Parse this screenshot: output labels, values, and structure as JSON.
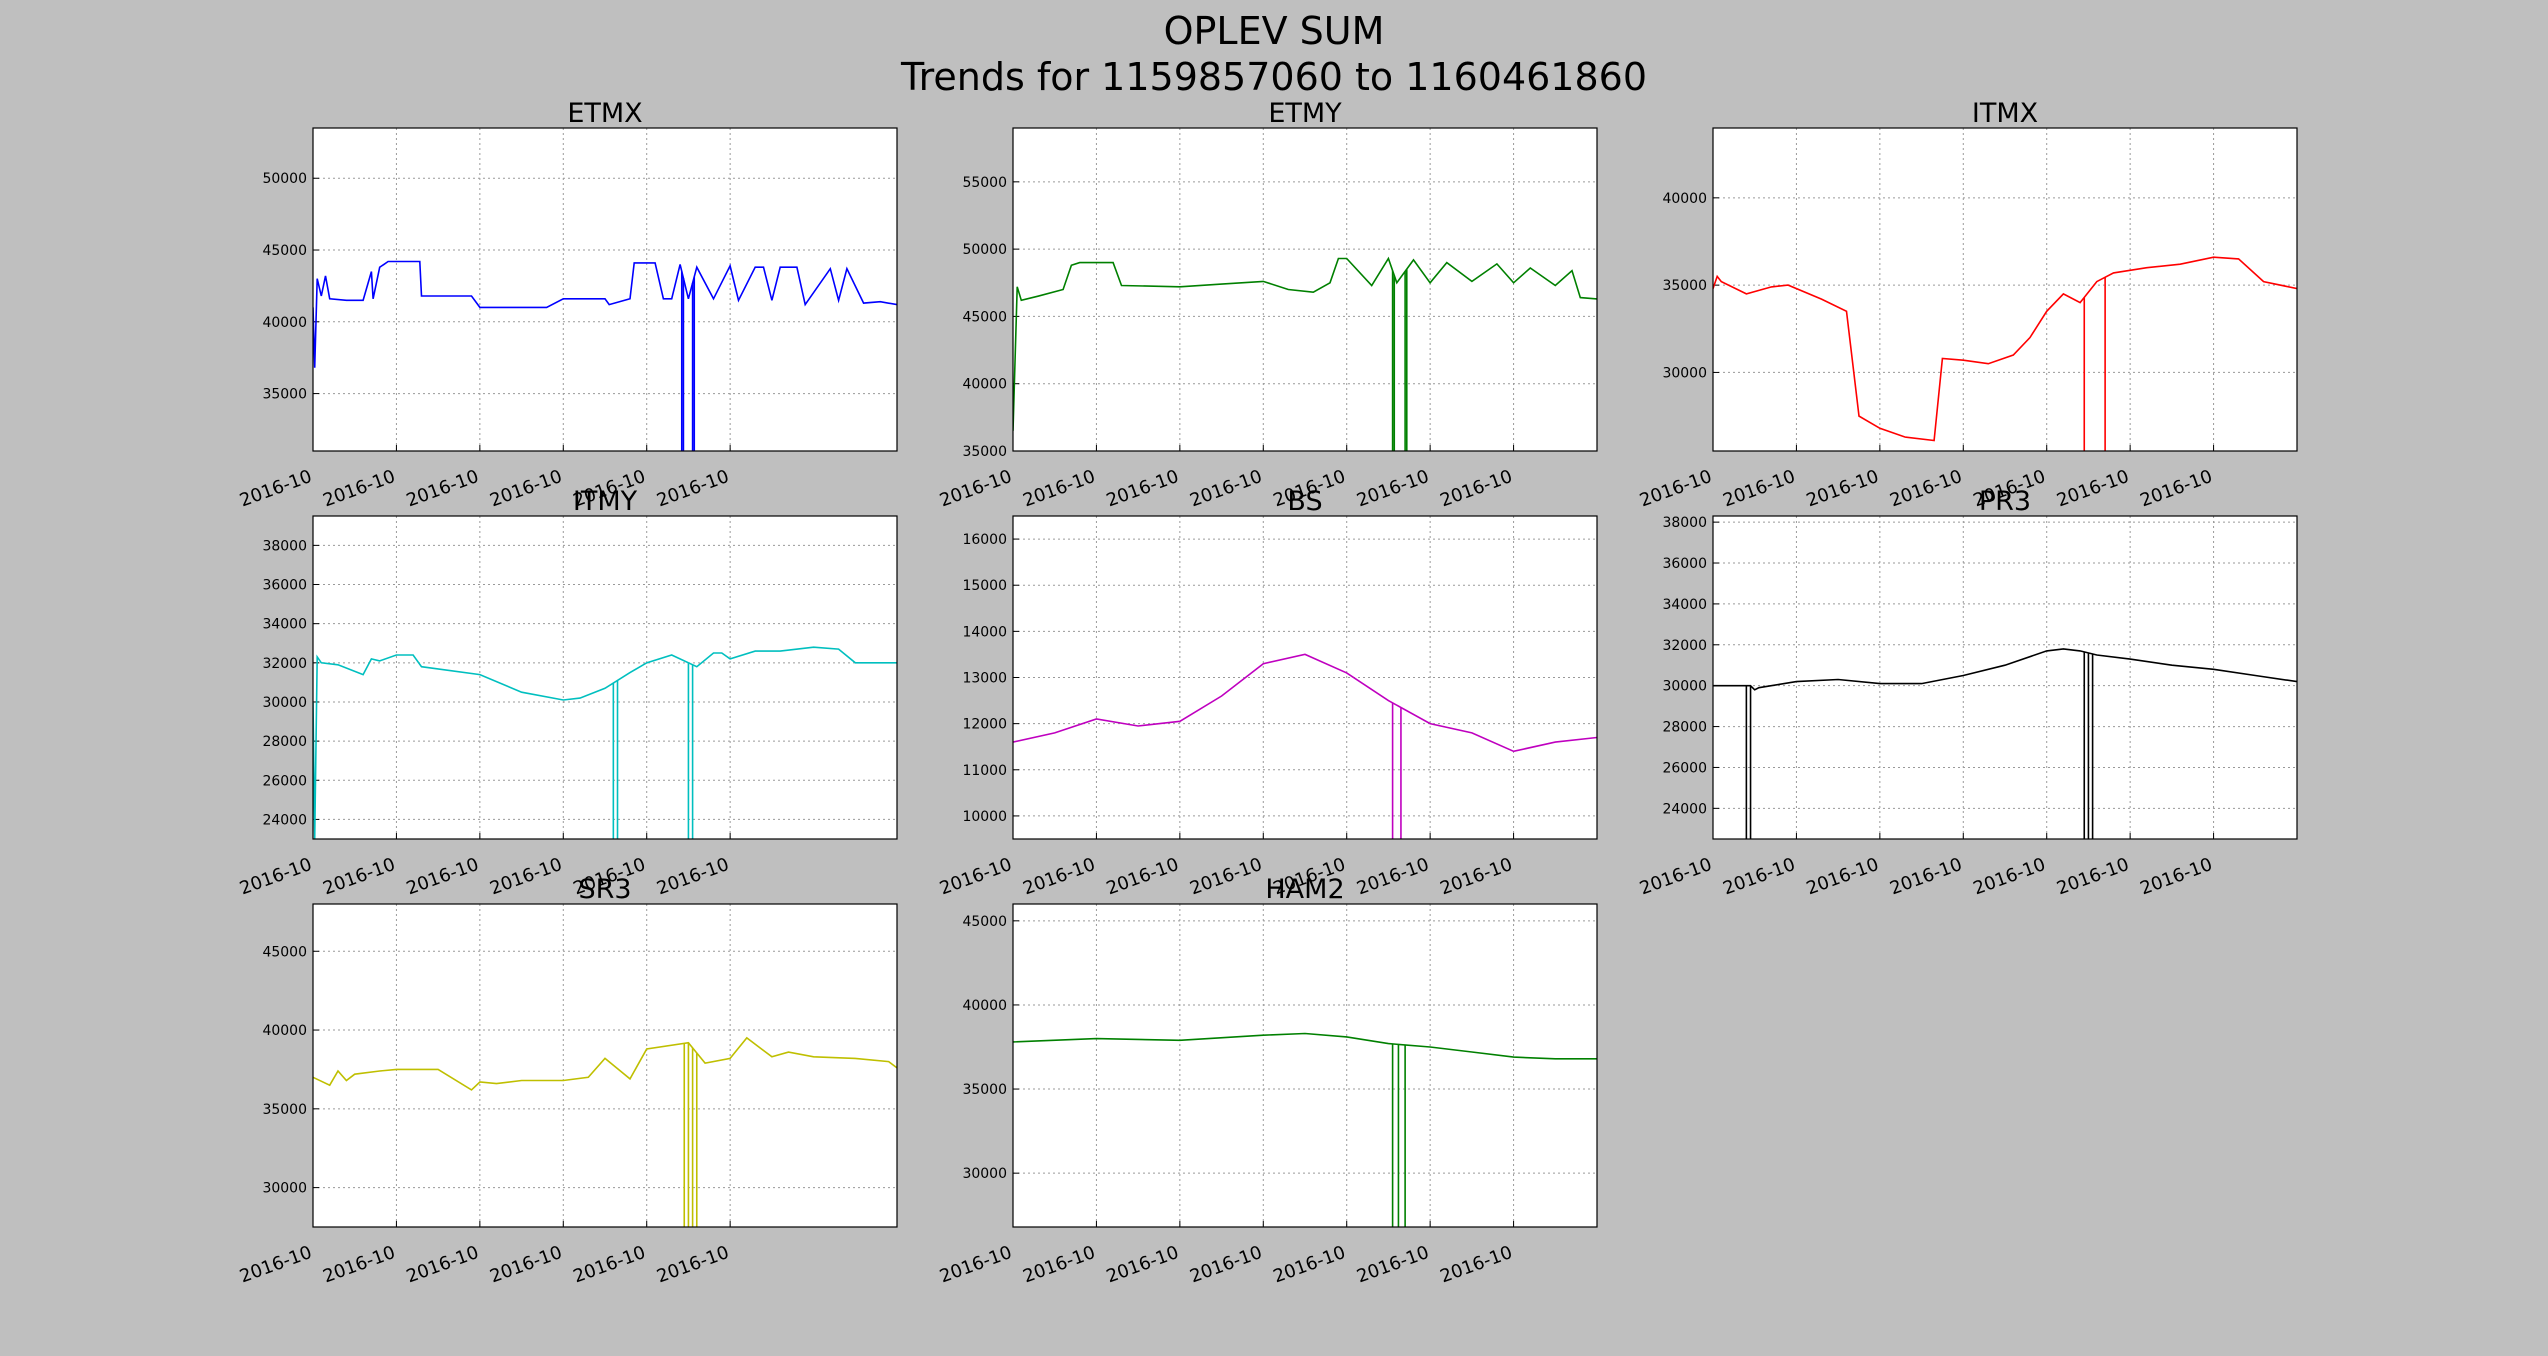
{
  "figure": {
    "title": "OPLEV SUM",
    "subtitle": "Trends for 1159857060 to 1160461860",
    "background": "#bfbfbf"
  },
  "chart_data": [
    {
      "type": "line",
      "title": "ETMX",
      "color": "#0000ff",
      "grid": true,
      "xlabel": "",
      "ylabel": "",
      "xlim": [
        0,
        7
      ],
      "ylim": [
        31000,
        53500
      ],
      "yticks": [
        35000,
        40000,
        45000,
        50000
      ],
      "xticks": [
        0,
        1,
        2,
        3,
        4,
        5
      ],
      "xticklabels": [
        "2016-10",
        "2016-10",
        "2016-10",
        "2016-10",
        "2016-10",
        "2016-10"
      ],
      "series": [
        {
          "x": [
            0,
            0.02,
            0.05,
            0.1,
            0.15,
            0.2,
            0.4,
            0.6,
            0.7,
            0.72,
            0.8,
            0.85,
            0.9,
            1.28,
            1.3,
            1.9,
            2.0,
            2.8,
            3.0,
            3.5,
            3.55,
            3.8,
            3.85,
            4.1,
            4.2,
            4.3,
            4.4,
            4.5,
            4.6,
            4.8,
            5.0,
            5.1,
            5.3,
            5.4,
            5.5,
            5.6,
            5.8,
            5.9,
            6.2,
            6.3,
            6.4,
            6.6,
            6.8,
            7.0
          ],
          "y": [
            41000,
            36800,
            43000,
            41800,
            43200,
            41600,
            41500,
            41500,
            43500,
            41600,
            43800,
            44000,
            44200,
            44200,
            41800,
            41800,
            41000,
            41000,
            41600,
            41600,
            41200,
            41600,
            44100,
            44100,
            41600,
            41600,
            44000,
            41600,
            43800,
            41600,
            43900,
            41500,
            43800,
            43800,
            41500,
            43800,
            43800,
            41200,
            43700,
            41500,
            43700,
            41300,
            41400,
            41200
          ]
        }
      ],
      "annotations": [
        {
          "x": [
            4.42,
            4.44,
            4.55,
            4.57
          ],
          "y": [
            31000,
            31000,
            31000,
            31000
          ]
        }
      ]
    },
    {
      "type": "line",
      "title": "ETMY",
      "color": "#008000",
      "grid": true,
      "xlabel": "",
      "ylabel": "",
      "xlim": [
        0,
        7
      ],
      "ylim": [
        35000,
        59000
      ],
      "yticks": [
        35000,
        40000,
        45000,
        50000,
        55000
      ],
      "xticks": [
        0,
        1,
        2,
        3,
        4,
        5,
        6
      ],
      "xticklabels": [
        "2016-10",
        "2016-10",
        "2016-10",
        "2016-10",
        "2016-10",
        "2016-10",
        "2016-10"
      ],
      "series": [
        {
          "x": [
            0,
            0.05,
            0.1,
            0.3,
            0.6,
            0.7,
            0.8,
            1.2,
            1.3,
            2.0,
            2.5,
            3.0,
            3.3,
            3.6,
            3.8,
            3.9,
            4.0,
            4.3,
            4.5,
            4.6,
            4.8,
            5.0,
            5.2,
            5.5,
            5.8,
            6.0,
            6.2,
            6.5,
            6.7,
            6.8,
            7.0
          ],
          "y": [
            36500,
            47200,
            46200,
            46500,
            47000,
            48800,
            49000,
            49000,
            47300,
            47200,
            47400,
            47600,
            47000,
            46800,
            47500,
            49300,
            49300,
            47300,
            49300,
            47500,
            49200,
            47500,
            49000,
            47600,
            48900,
            47500,
            48600,
            47300,
            48400,
            46400,
            46300
          ]
        }
      ],
      "annotations": [
        {
          "x": [
            4.55,
            4.57,
            4.7,
            4.72
          ],
          "y": [
            35000,
            35000,
            35000,
            35000
          ]
        }
      ]
    },
    {
      "type": "line",
      "title": "ITMX",
      "color": "#ff0000",
      "grid": true,
      "xlabel": "",
      "ylabel": "",
      "xlim": [
        0,
        7
      ],
      "ylim": [
        25500,
        44000
      ],
      "yticks": [
        30000,
        35000,
        40000
      ],
      "xticks": [
        0,
        1,
        2,
        3,
        4,
        5,
        6
      ],
      "xticklabels": [
        "2016-10",
        "2016-10",
        "2016-10",
        "2016-10",
        "2016-10",
        "2016-10",
        "2016-10"
      ],
      "series": [
        {
          "x": [
            0,
            0.05,
            0.1,
            0.4,
            0.7,
            0.9,
            1.3,
            1.6,
            1.75,
            2.0,
            2.3,
            2.65,
            2.75,
            3.0,
            3.3,
            3.6,
            3.8,
            4.0,
            4.2,
            4.4,
            4.6,
            4.8,
            5.2,
            5.6,
            6.0,
            6.3,
            6.6,
            7.0
          ],
          "y": [
            34800,
            35500,
            35200,
            34500,
            34900,
            35000,
            34200,
            33500,
            27500,
            26800,
            26300,
            26100,
            30800,
            30700,
            30500,
            31000,
            32000,
            33500,
            34500,
            34000,
            35200,
            35700,
            36000,
            36200,
            36600,
            36500,
            35200,
            34800
          ]
        }
      ],
      "annotations": [
        {
          "x": [
            4.45,
            4.7
          ],
          "y": [
            25500,
            25500
          ]
        }
      ]
    },
    {
      "type": "line",
      "title": "ITMY",
      "color": "#00bfbf",
      "grid": true,
      "xlabel": "",
      "ylabel": "",
      "xlim": [
        0,
        7
      ],
      "ylim": [
        23000,
        39500
      ],
      "yticks": [
        24000,
        26000,
        28000,
        30000,
        32000,
        34000,
        36000,
        38000
      ],
      "xticks": [
        0,
        1,
        2,
        3,
        4,
        5
      ],
      "xticklabels": [
        "2016-10",
        "2016-10",
        "2016-10",
        "2016-10",
        "2016-10",
        "2016-10"
      ],
      "series": [
        {
          "x": [
            0,
            0.02,
            0.05,
            0.1,
            0.3,
            0.6,
            0.7,
            0.8,
            1.0,
            1.2,
            1.3,
            2.0,
            2.5,
            3.0,
            3.2,
            3.5,
            3.8,
            4.0,
            4.3,
            4.6,
            4.8,
            4.9,
            5.0,
            5.3,
            5.6,
            6.0,
            6.3,
            6.5,
            7.0
          ],
          "y": [
            30000,
            23000,
            32300,
            32000,
            31900,
            31400,
            32200,
            32100,
            32400,
            32400,
            31800,
            31400,
            30500,
            30100,
            30200,
            30700,
            31500,
            32000,
            32400,
            31800,
            32500,
            32500,
            32200,
            32600,
            32600,
            32800,
            32700,
            32000,
            32000
          ]
        }
      ],
      "annotations": [
        {
          "x": [
            3.6,
            3.65,
            4.5,
            4.55
          ],
          "y": [
            23000,
            23000,
            23000,
            23000
          ]
        }
      ]
    },
    {
      "type": "line",
      "title": "BS",
      "color": "#bf00bf",
      "grid": true,
      "xlabel": "",
      "ylabel": "",
      "xlim": [
        0,
        7
      ],
      "ylim": [
        9500,
        16500
      ],
      "yticks": [
        10000,
        11000,
        12000,
        13000,
        14000,
        15000,
        16000
      ],
      "xticks": [
        0,
        1,
        2,
        3,
        4,
        5,
        6
      ],
      "xticklabels": [
        "2016-10",
        "2016-10",
        "2016-10",
        "2016-10",
        "2016-10",
        "2016-10",
        "2016-10"
      ],
      "series": [
        {
          "x": [
            0,
            0.5,
            1.0,
            1.5,
            2.0,
            2.5,
            3.0,
            3.5,
            4.0,
            4.5,
            5.0,
            5.5,
            6.0,
            6.5,
            7.0
          ],
          "y": [
            11600,
            11800,
            12100,
            11950,
            12050,
            12600,
            13300,
            13500,
            13100,
            12500,
            12000,
            11800,
            11400,
            11600,
            11700
          ]
        }
      ],
      "annotations": [
        {
          "x": [
            4.55,
            4.65
          ],
          "y": [
            9500,
            9500
          ]
        }
      ]
    },
    {
      "type": "line",
      "title": "PR3",
      "color": "#000000",
      "grid": true,
      "xlabel": "",
      "ylabel": "",
      "xlim": [
        0,
        7
      ],
      "ylim": [
        22500,
        38300
      ],
      "yticks": [
        24000,
        26000,
        28000,
        30000,
        32000,
        34000,
        36000,
        38000
      ],
      "xticks": [
        0,
        1,
        2,
        3,
        4,
        5,
        6
      ],
      "xticklabels": [
        "2016-10",
        "2016-10",
        "2016-10",
        "2016-10",
        "2016-10",
        "2016-10",
        "2016-10"
      ],
      "series": [
        {
          "x": [
            0,
            0.4,
            0.45,
            0.5,
            0.55,
            1.0,
            1.5,
            2.0,
            2.5,
            3.0,
            3.5,
            4.0,
            4.2,
            4.4,
            4.6,
            5.0,
            5.5,
            6.0,
            6.5,
            7.0
          ],
          "y": [
            30000,
            30000,
            30000,
            29800,
            29900,
            30200,
            30300,
            30100,
            30100,
            30500,
            31000,
            31700,
            31800,
            31700,
            31500,
            31300,
            31000,
            30800,
            30500,
            30200
          ]
        }
      ],
      "annotations": [
        {
          "x": [
            0.4,
            0.45,
            4.45,
            4.5,
            4.55
          ],
          "y": [
            22500,
            22500,
            22500,
            22500,
            22500
          ]
        }
      ]
    },
    {
      "type": "line",
      "title": "SR3",
      "color": "#bfbf00",
      "grid": true,
      "xlabel": "",
      "ylabel": "",
      "xlim": [
        0,
        7
      ],
      "ylim": [
        27500,
        48000
      ],
      "yticks": [
        30000,
        35000,
        40000,
        45000
      ],
      "xticks": [
        0,
        1,
        2,
        3,
        4,
        5
      ],
      "xticklabels": [
        "2016-10",
        "2016-10",
        "2016-10",
        "2016-10",
        "2016-10",
        "2016-10"
      ],
      "series": [
        {
          "x": [
            0,
            0.2,
            0.3,
            0.4,
            0.5,
            0.8,
            1.0,
            1.5,
            1.9,
            2.0,
            2.2,
            2.5,
            3.0,
            3.3,
            3.5,
            3.8,
            4.0,
            4.5,
            4.7,
            5.0,
            5.2,
            5.5,
            5.7,
            6.0,
            6.5,
            6.9,
            7.0
          ],
          "y": [
            37000,
            36500,
            37400,
            36800,
            37200,
            37400,
            37500,
            37500,
            36200,
            36700,
            36600,
            36800,
            36800,
            37000,
            38200,
            36900,
            38800,
            39200,
            37900,
            38200,
            39500,
            38300,
            38600,
            38300,
            38200,
            38000,
            37600
          ]
        }
      ],
      "annotations": [
        {
          "x": [
            4.45,
            4.5,
            4.55,
            4.6
          ],
          "y": [
            27500,
            27500,
            27500,
            27500
          ]
        }
      ]
    },
    {
      "type": "line",
      "title": "HAM2",
      "color": "#008000",
      "grid": true,
      "xlabel": "",
      "ylabel": "",
      "xlim": [
        0,
        7
      ],
      "ylim": [
        26800,
        46000
      ],
      "yticks": [
        30000,
        35000,
        40000,
        45000
      ],
      "xticks": [
        0,
        1,
        2,
        3,
        4,
        5,
        6
      ],
      "xticklabels": [
        "2016-10",
        "2016-10",
        "2016-10",
        "2016-10",
        "2016-10",
        "2016-10",
        "2016-10"
      ],
      "series": [
        {
          "x": [
            0,
            1.0,
            2.0,
            3.0,
            3.5,
            4.0,
            4.5,
            5.0,
            5.5,
            6.0,
            6.5,
            7.0
          ],
          "y": [
            37800,
            38000,
            37900,
            38200,
            38300,
            38100,
            37700,
            37500,
            37200,
            36900,
            36800,
            36800
          ]
        }
      ],
      "annotations": [
        {
          "x": [
            4.55,
            4.62,
            4.7
          ],
          "y": [
            26800,
            26800,
            26800
          ]
        }
      ]
    }
  ]
}
